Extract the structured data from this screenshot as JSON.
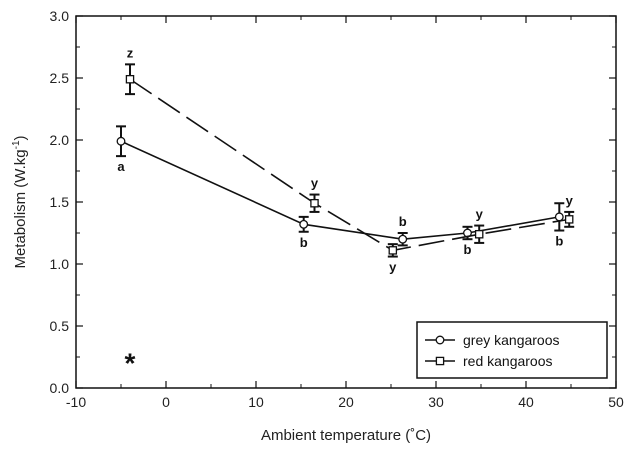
{
  "chart_data": {
    "type": "line",
    "xlabel": "Ambient temperature (˚C)",
    "ylabel_main": "Metabolism (W.kg",
    "ylabel_sup": "-1",
    "ylabel_tail": ")",
    "xlim": [
      -10,
      50
    ],
    "ylim": [
      0.0,
      3.0
    ],
    "xticks": [
      -10,
      0,
      10,
      20,
      30,
      40,
      50
    ],
    "yticks": [
      "0.0",
      "0.5",
      "1.0",
      "1.5",
      "2.0",
      "2.5",
      "3.0"
    ],
    "grid": false,
    "legend_position": "bottom-right",
    "annotation": "*",
    "annotation_at": [
      -4,
      0.22
    ],
    "series": [
      {
        "name": "grey kangaroos",
        "marker": "circle",
        "line_style": "solid",
        "points": [
          {
            "x": -5,
            "y": 1.99,
            "err": 0.12,
            "label": "a",
            "label_pos": "below"
          },
          {
            "x": 15.3,
            "y": 1.32,
            "err": 0.06,
            "label": "b",
            "label_pos": "below"
          },
          {
            "x": 26.3,
            "y": 1.2,
            "err": 0.05,
            "label": "b",
            "label_pos": "above"
          },
          {
            "x": 33.5,
            "y": 1.25,
            "err": 0.05,
            "label": "b",
            "label_pos": "below"
          },
          {
            "x": 43.7,
            "y": 1.38,
            "err": 0.11,
            "label": "b",
            "label_pos": "below"
          }
        ]
      },
      {
        "name": "red kangaroos",
        "marker": "square",
        "line_style": "dashed",
        "points": [
          {
            "x": -4,
            "y": 2.49,
            "err": 0.12,
            "label": "z",
            "label_pos": "above"
          },
          {
            "x": 16.5,
            "y": 1.49,
            "err": 0.07,
            "label": "y",
            "label_pos": "above"
          },
          {
            "x": 25.2,
            "y": 1.11,
            "err": 0.05,
            "label": "y",
            "label_pos": "below"
          },
          {
            "x": 34.8,
            "y": 1.24,
            "err": 0.07,
            "label": "y",
            "label_pos": "above"
          },
          {
            "x": 44.8,
            "y": 1.36,
            "err": 0.06,
            "label": "y",
            "label_pos": "above"
          }
        ]
      }
    ]
  }
}
